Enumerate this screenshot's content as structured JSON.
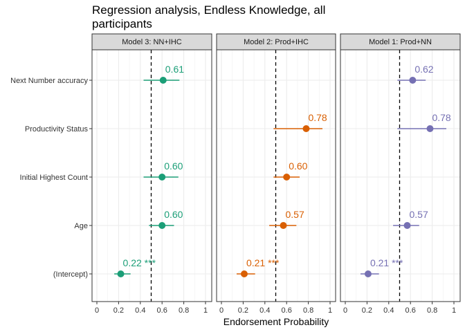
{
  "chart_data": {
    "type": "forest",
    "title": "Regression analysis, Endless Knowledge, all participants",
    "xlabel": "Endorsement Probability",
    "xlim": [
      0,
      1
    ],
    "xticks": [
      "0",
      "0.2",
      "0.4",
      "0.6",
      "0.8",
      "1"
    ],
    "reference_line": 0.5,
    "rows": [
      "Next Number accuracy",
      "Productivity Status",
      "Initial Highest Count",
      "Age",
      "(Intercept)"
    ],
    "panels": [
      {
        "name": "Model 3: NN+IHC",
        "color": "#1b9e77",
        "points": [
          {
            "term": "Next Number accuracy",
            "estimate": 0.61,
            "lower": 0.43,
            "upper": 0.76,
            "label": "0.61"
          },
          {
            "term": "Initial Highest Count",
            "estimate": 0.6,
            "lower": 0.43,
            "upper": 0.75,
            "label": "0.60"
          },
          {
            "term": "Age",
            "estimate": 0.6,
            "lower": 0.48,
            "upper": 0.71,
            "label": "0.60"
          },
          {
            "term": "(Intercept)",
            "estimate": 0.22,
            "lower": 0.16,
            "upper": 0.31,
            "label": "0.22 ***"
          }
        ]
      },
      {
        "name": "Model 2: Prod+IHC",
        "color": "#d95f02",
        "points": [
          {
            "term": "Productivity Status",
            "estimate": 0.78,
            "lower": 0.48,
            "upper": 0.93,
            "label": "0.78"
          },
          {
            "term": "Initial Highest Count",
            "estimate": 0.6,
            "lower": 0.48,
            "upper": 0.72,
            "label": "0.60"
          },
          {
            "term": "Age",
            "estimate": 0.57,
            "lower": 0.44,
            "upper": 0.69,
            "label": "0.57"
          },
          {
            "term": "(Intercept)",
            "estimate": 0.21,
            "lower": 0.14,
            "upper": 0.31,
            "label": "0.21 ***"
          }
        ]
      },
      {
        "name": "Model 1: Prod+NN",
        "color": "#7570b3",
        "points": [
          {
            "term": "Next Number accuracy",
            "estimate": 0.62,
            "lower": 0.48,
            "upper": 0.74,
            "label": "0.62"
          },
          {
            "term": "Productivity Status",
            "estimate": 0.78,
            "lower": 0.48,
            "upper": 0.93,
            "label": "0.78"
          },
          {
            "term": "Age",
            "estimate": 0.57,
            "lower": 0.44,
            "upper": 0.68,
            "label": "0.57"
          },
          {
            "term": "(Intercept)",
            "estimate": 0.21,
            "lower": 0.14,
            "upper": 0.31,
            "label": "0.21 ***"
          }
        ]
      }
    ]
  }
}
